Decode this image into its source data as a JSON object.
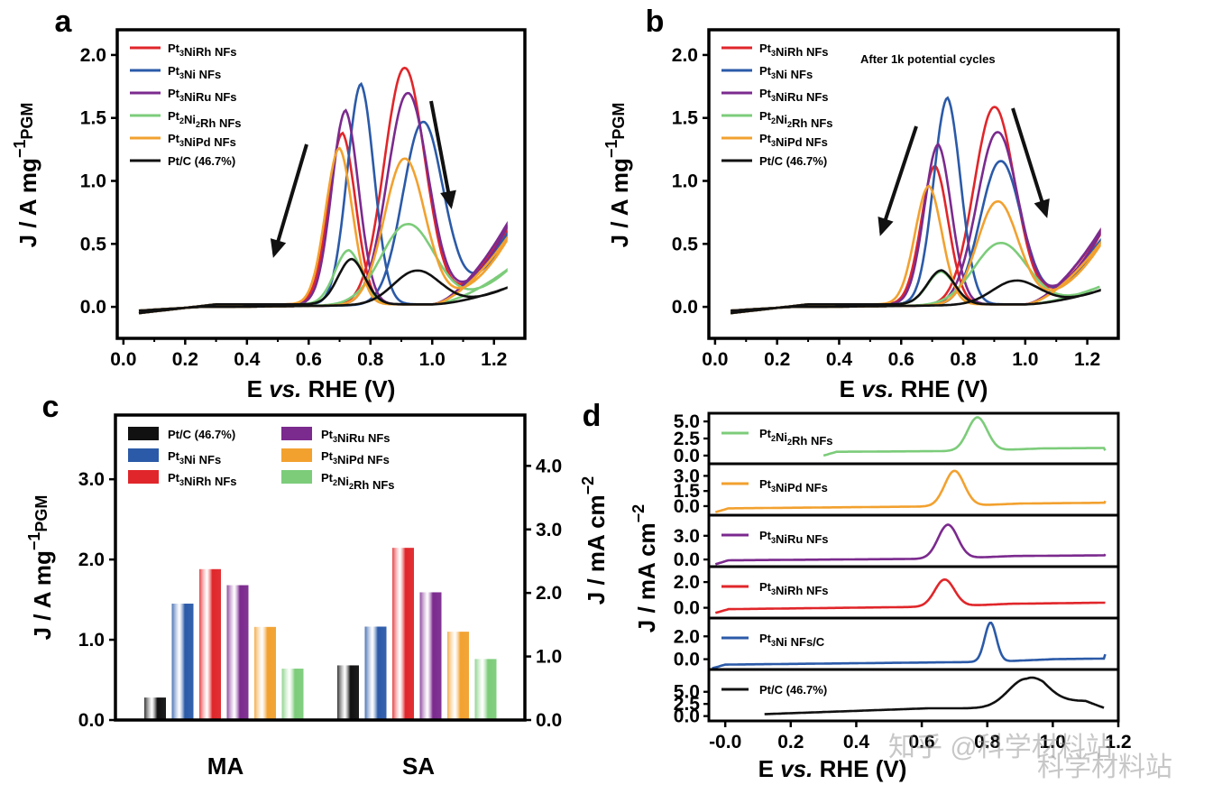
{
  "colors": {
    "Pt3NiRh": "#e0262a",
    "Pt3Ni": "#2b5aa8",
    "Pt3NiRu": "#7b2a8e",
    "Pt2Ni2Rh": "#7ccc7a",
    "Pt3NiPd": "#f2a12f",
    "PtC": "#111111"
  },
  "watermarks": [
    "知乎 @科学材料站",
    "科学材料站"
  ],
  "chart_data": [
    {
      "id": "a",
      "label": "a",
      "type": "line",
      "xlabel": "E vs. RHE (V)",
      "ylabel": "J / A mgPGM−1",
      "xlim": [
        -0.02,
        1.3
      ],
      "ylim": [
        -0.25,
        2.2
      ],
      "xticks": [
        "0.0",
        "0.2",
        "0.4",
        "0.6",
        "0.8",
        "1.0",
        "1.2"
      ],
      "yticks": [
        "0.0",
        "0.5",
        "1.0",
        "1.5",
        "2.0"
      ],
      "annotation": "",
      "legend": [
        "Pt3NiRh NFs",
        "Pt3Ni NFs",
        "Pt3NiRu NFs",
        "Pt2Ni2Rh NFs",
        "Pt3NiPd NFs",
        "Pt/C (46.7%)"
      ],
      "series": [
        {
          "name": "Pt3NiRh NFs",
          "forward_peak": [
            0.91,
            1.88
          ],
          "backward_peak": [
            0.71,
            1.36
          ],
          "end_current": 0.6
        },
        {
          "name": "Pt3Ni NFs",
          "forward_peak": [
            0.97,
            1.45
          ],
          "backward_peak": [
            0.77,
            1.75
          ],
          "end_current": 0.55
        },
        {
          "name": "Pt3NiRu NFs",
          "forward_peak": [
            0.92,
            1.68
          ],
          "backward_peak": [
            0.72,
            1.54
          ],
          "end_current": 0.63
        },
        {
          "name": "Pt2Ni2Rh NFs",
          "forward_peak": [
            0.92,
            0.64
          ],
          "backward_peak": [
            0.73,
            0.43
          ],
          "end_current": 0.27
        },
        {
          "name": "Pt3NiPd NFs",
          "forward_peak": [
            0.91,
            1.16
          ],
          "backward_peak": [
            0.7,
            1.24
          ],
          "end_current": 0.52
        },
        {
          "name": "Pt/C (46.7%)",
          "forward_peak": [
            0.95,
            0.27
          ],
          "backward_peak": [
            0.74,
            0.36
          ],
          "end_current": 0.13
        }
      ]
    },
    {
      "id": "b",
      "label": "b",
      "type": "line",
      "xlabel": "E vs. RHE (V)",
      "ylabel": "J / A mgPGM−1",
      "xlim": [
        -0.02,
        1.3
      ],
      "ylim": [
        -0.25,
        2.2
      ],
      "xticks": [
        "0.0",
        "0.2",
        "0.4",
        "0.6",
        "0.8",
        "1.0",
        "1.2"
      ],
      "yticks": [
        "0.0",
        "0.5",
        "1.0",
        "1.5",
        "2.0"
      ],
      "annotation": "After 1k potential cycles",
      "legend": [
        "Pt3NiRh NFs",
        "Pt3Ni NFs",
        "Pt3NiRu NFs",
        "Pt2Ni2Rh NFs",
        "Pt3NiPd NFs",
        "Pt/C (46.7%)"
      ],
      "series": [
        {
          "name": "Pt3NiRh NFs",
          "forward_peak": [
            0.9,
            1.57
          ],
          "backward_peak": [
            0.71,
            1.1
          ],
          "end_current": 0.57
        },
        {
          "name": "Pt3Ni NFs",
          "forward_peak": [
            0.92,
            1.14
          ],
          "backward_peak": [
            0.75,
            1.64
          ],
          "end_current": 0.5
        },
        {
          "name": "Pt3NiRu NFs",
          "forward_peak": [
            0.91,
            1.37
          ],
          "backward_peak": [
            0.72,
            1.27
          ],
          "end_current": 0.58
        },
        {
          "name": "Pt2Ni2Rh NFs",
          "forward_peak": [
            0.92,
            0.49
          ],
          "backward_peak": [
            0.73,
            0.26
          ],
          "end_current": 0.14
        },
        {
          "name": "Pt3NiPd NFs",
          "forward_peak": [
            0.91,
            0.82
          ],
          "backward_peak": [
            0.69,
            0.94
          ],
          "end_current": 0.48
        },
        {
          "name": "Pt/C (46.7%)",
          "forward_peak": [
            0.97,
            0.19
          ],
          "backward_peak": [
            0.73,
            0.27
          ],
          "end_current": 0.11
        }
      ]
    },
    {
      "id": "c",
      "label": "c",
      "type": "bar",
      "categories": [
        "MA",
        "SA"
      ],
      "ylabel": "J / A mgPGM−1",
      "ylabel_right": "J / mA cm−2",
      "ylim": [
        0,
        3.8
      ],
      "ylim_right": [
        0,
        4.8
      ],
      "yticks": [
        "0.0",
        "1.0",
        "2.0",
        "3.0"
      ],
      "yticks_right": [
        "0.0",
        "1.0",
        "2.0",
        "3.0",
        "4.0"
      ],
      "legend": [
        "Pt/C (46.7%)",
        "Pt3Ni NFs",
        "Pt3NiRh NFs",
        "Pt3NiRu NFs",
        "Pt3NiPd NFs",
        "Pt2Ni2Rh NFs"
      ],
      "series": [
        {
          "name": "Pt/C (46.7%)",
          "values": [
            0.28,
            0.86
          ]
        },
        {
          "name": "Pt3Ni NFs",
          "values": [
            1.45,
            1.47
          ]
        },
        {
          "name": "Pt3NiRh NFs",
          "values": [
            1.88,
            2.71
          ]
        },
        {
          "name": "Pt3NiRu NFs",
          "values": [
            1.68,
            2.01
          ]
        },
        {
          "name": "Pt3NiPd NFs",
          "values": [
            1.16,
            1.39
          ]
        },
        {
          "name": "Pt2Ni2Rh NFs",
          "values": [
            0.64,
            0.96
          ]
        }
      ],
      "units_note": "MA in A mgPGM−1 (left axis); SA in mA cm−2 (right axis)"
    },
    {
      "id": "d",
      "label": "d",
      "type": "line",
      "xlabel": "E vs. RHE (V)",
      "ylabel": "J / mA cm−2",
      "xlim": [
        -0.05,
        1.2
      ],
      "xticks": [
        "-0.0",
        "0.2",
        "0.4",
        "0.6",
        "0.8",
        "1.0",
        "1.2"
      ],
      "subplots": [
        {
          "name": "Pt2Ni2Rh NFs",
          "yticks": [
            "0.0",
            "2.5",
            "5.0"
          ],
          "ylim": [
            -1.2,
            6.2
          ],
          "peak": [
            0.77,
            5.6
          ],
          "start": [
            0.3,
            0.0
          ]
        },
        {
          "name": "Pt3NiPd NFs",
          "yticks": [
            "0.0",
            "1.5",
            "3.0"
          ],
          "ylim": [
            -0.9,
            4.2
          ],
          "peak": [
            0.7,
            3.5
          ],
          "start": [
            -0.03,
            -0.6
          ]
        },
        {
          "name": "Pt3NiRu NFs",
          "yticks": [
            "0.0",
            "3.0"
          ],
          "ylim": [
            -0.9,
            5.6
          ],
          "peak": [
            0.68,
            4.4
          ],
          "start": [
            -0.03,
            -0.6
          ]
        },
        {
          "name": "Pt3NiRh NFs",
          "yticks": [
            "0.0",
            "2.0"
          ],
          "ylim": [
            -0.8,
            3.2
          ],
          "peak": [
            0.67,
            2.2
          ],
          "start": [
            -0.03,
            -0.4
          ]
        },
        {
          "name": "Pt3Ni NFs/C",
          "yticks": [
            "0.0",
            "2.0"
          ],
          "ylim": [
            -0.9,
            3.6
          ],
          "peak": [
            0.81,
            3.2
          ],
          "start": [
            -0.04,
            -0.8
          ]
        },
        {
          "name": "Pt/C (46.7%)",
          "yticks": [
            "0.0",
            "2.5",
            "5.0"
          ],
          "ylim": [
            -1.0,
            9.6
          ],
          "peak": [
            0.92,
            7.6
          ],
          "start": [
            0.12,
            0.4
          ]
        }
      ]
    }
  ]
}
